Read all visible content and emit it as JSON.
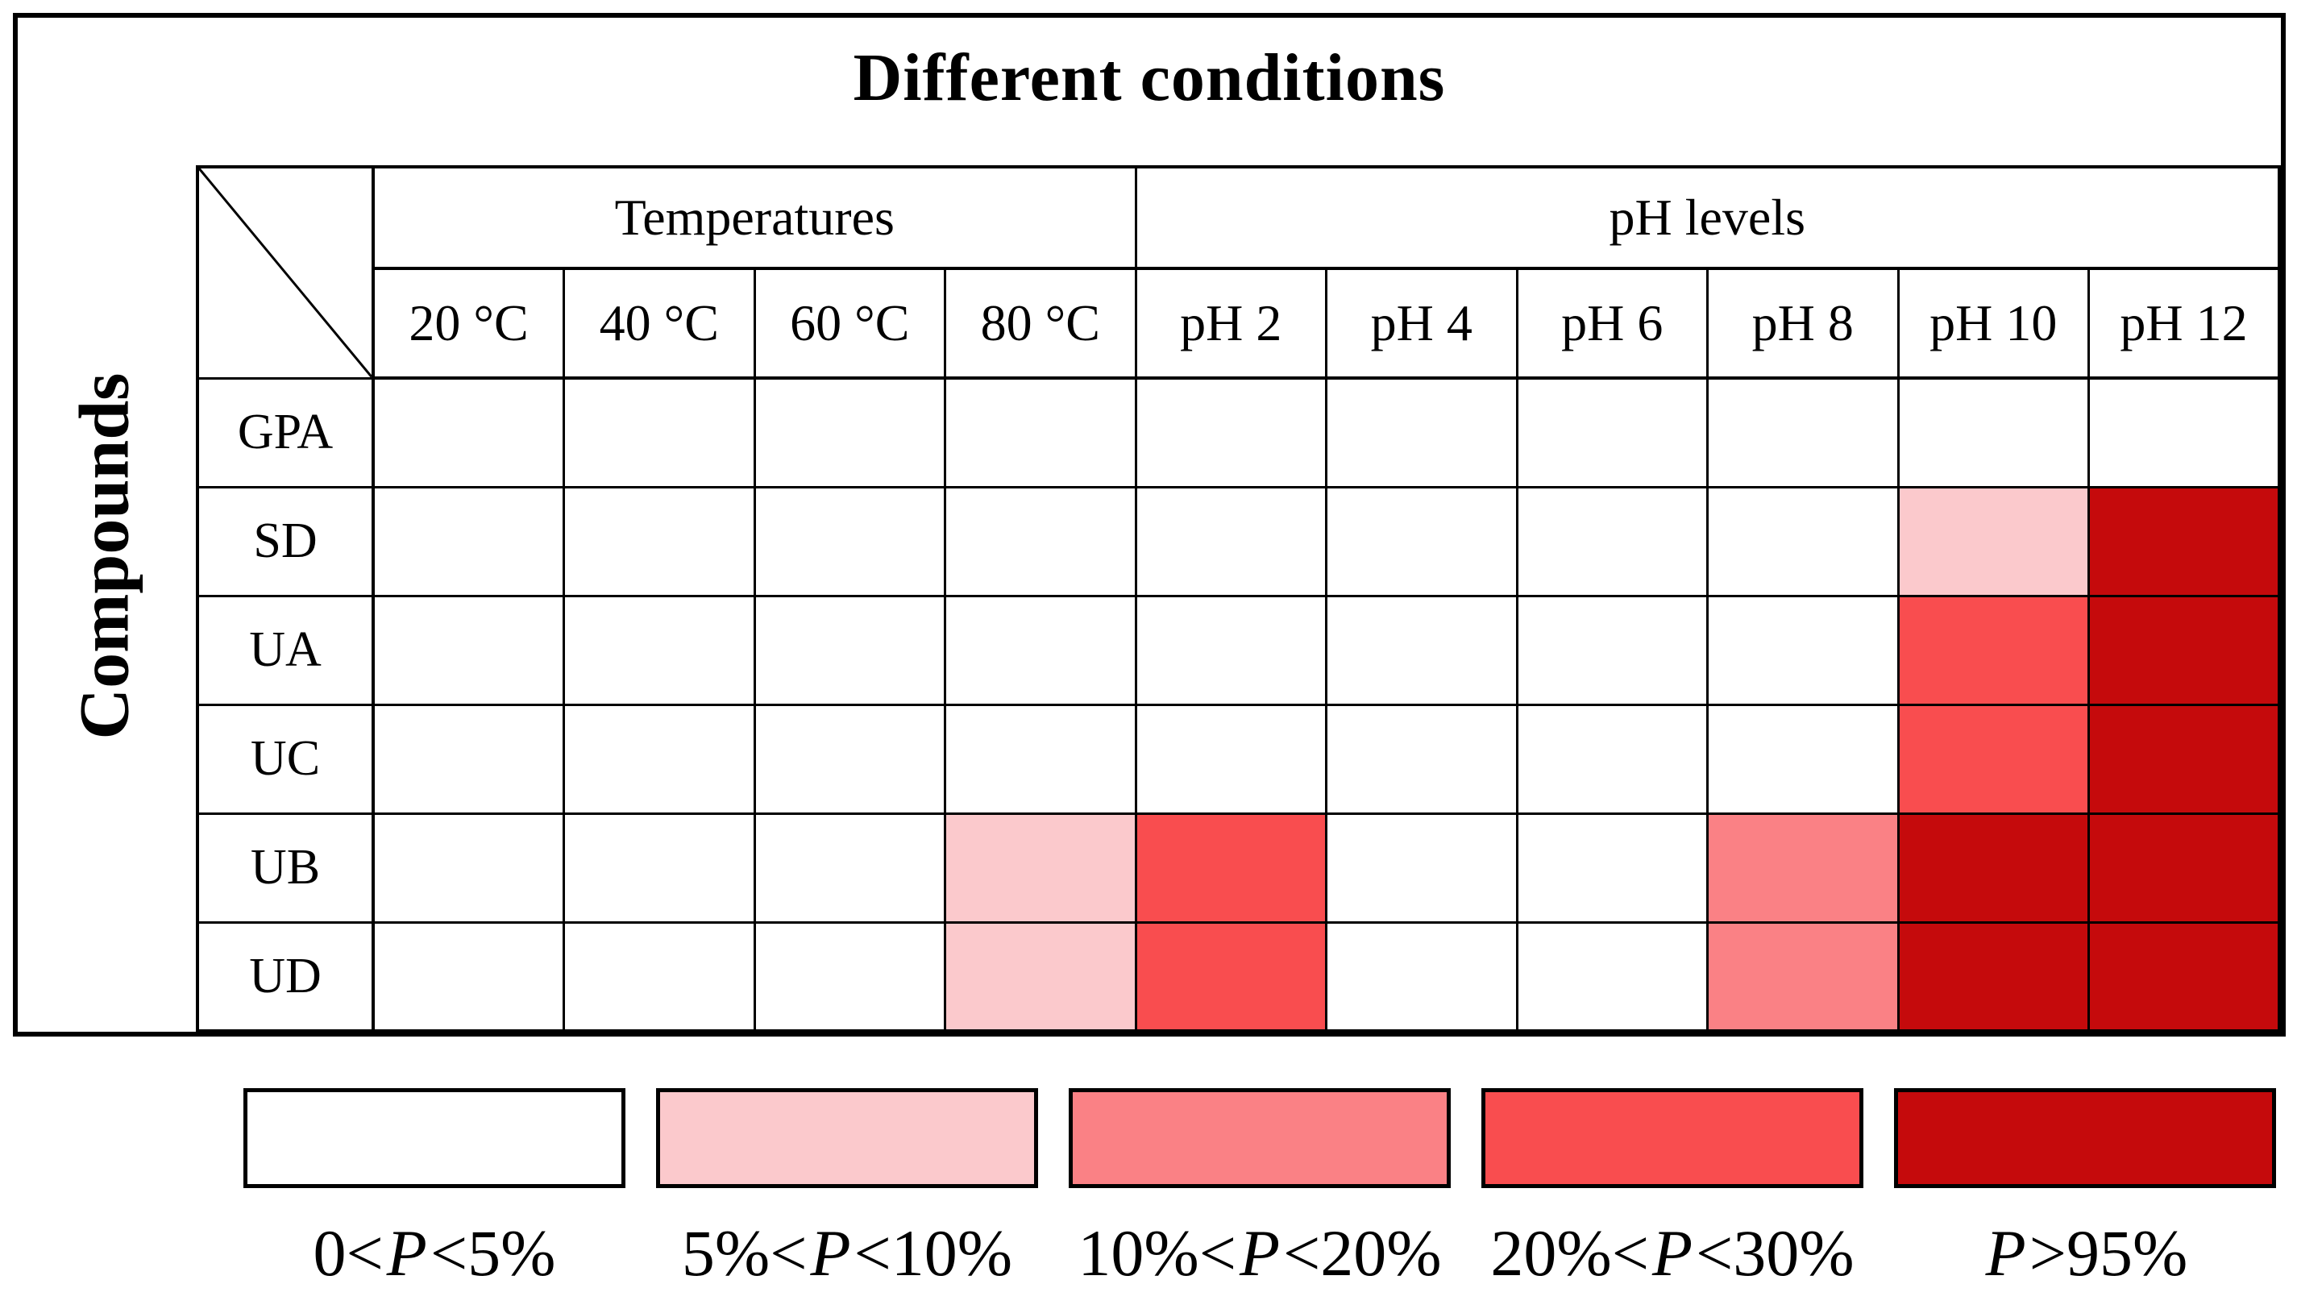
{
  "figure": {
    "title": "Different conditions",
    "y_axis_label": "Compounds"
  },
  "table": {
    "column_groups": [
      {
        "label": "Temperatures",
        "span": 4
      },
      {
        "label": "pH levels",
        "span": 6
      }
    ],
    "columns": [
      "20 °C",
      "40 °C",
      "60 °C",
      "80 °C",
      "pH 2",
      "pH 4",
      "pH 6",
      "pH 8",
      "pH 10",
      "pH 12"
    ],
    "rows": [
      {
        "label": "GPA",
        "levels": [
          0,
          0,
          0,
          0,
          0,
          0,
          0,
          0,
          0,
          0
        ]
      },
      {
        "label": "SD",
        "levels": [
          0,
          0,
          0,
          0,
          0,
          0,
          0,
          0,
          1,
          4
        ]
      },
      {
        "label": "UA",
        "levels": [
          0,
          0,
          0,
          0,
          0,
          0,
          0,
          0,
          3,
          4
        ]
      },
      {
        "label": "UC",
        "levels": [
          0,
          0,
          0,
          0,
          0,
          0,
          0,
          0,
          3,
          4
        ]
      },
      {
        "label": "UB",
        "levels": [
          0,
          0,
          0,
          1,
          3,
          0,
          0,
          2,
          4,
          4
        ]
      },
      {
        "label": "UD",
        "levels": [
          0,
          0,
          0,
          1,
          3,
          0,
          0,
          2,
          4,
          4
        ]
      }
    ]
  },
  "legend": {
    "items": [
      {
        "level": 0,
        "color": "#FFFFFF",
        "pre": "0<",
        "p": "P",
        "post": "<5%",
        "label": "0<P<5%"
      },
      {
        "level": 1,
        "color": "#FBC9CC",
        "pre": "5%<",
        "p": "P",
        "post": "<10%",
        "label": "5%<P<10%"
      },
      {
        "level": 2,
        "color": "#FA8185",
        "pre": "10%<",
        "p": "P",
        "post": "<20%",
        "label": "10%<P<20%"
      },
      {
        "level": 3,
        "color": "#F94D4F",
        "pre": "20%<",
        "p": "P",
        "post": "<30%",
        "label": "20%<P<30%"
      },
      {
        "level": 4,
        "color": "#C50A0C",
        "pre": "",
        "p": "P",
        "post": ">95%",
        "label": "P>95%"
      }
    ]
  },
  "chart_data": {
    "type": "heatmap",
    "title": "Different conditions",
    "ylabel": "Compounds",
    "x_groups": [
      {
        "label": "Temperatures",
        "columns": [
          "20 °C",
          "40 °C",
          "60 °C",
          "80 °C"
        ]
      },
      {
        "label": "pH levels",
        "columns": [
          "pH 2",
          "pH 4",
          "pH 6",
          "pH 8",
          "pH 10",
          "pH 12"
        ]
      }
    ],
    "x": [
      "20 °C",
      "40 °C",
      "60 °C",
      "80 °C",
      "pH 2",
      "pH 4",
      "pH 6",
      "pH 8",
      "pH 10",
      "pH 12"
    ],
    "y": [
      "GPA",
      "SD",
      "UA",
      "UC",
      "UB",
      "UD"
    ],
    "values": [
      [
        "0<P<5%",
        "0<P<5%",
        "0<P<5%",
        "0<P<5%",
        "0<P<5%",
        "0<P<5%",
        "0<P<5%",
        "0<P<5%",
        "0<P<5%",
        "0<P<5%"
      ],
      [
        "0<P<5%",
        "0<P<5%",
        "0<P<5%",
        "0<P<5%",
        "0<P<5%",
        "0<P<5%",
        "0<P<5%",
        "0<P<5%",
        "5%<P<10%",
        "P>95%"
      ],
      [
        "0<P<5%",
        "0<P<5%",
        "0<P<5%",
        "0<P<5%",
        "0<P<5%",
        "0<P<5%",
        "0<P<5%",
        "0<P<5%",
        "20%<P<30%",
        "P>95%"
      ],
      [
        "0<P<5%",
        "0<P<5%",
        "0<P<5%",
        "0<P<5%",
        "0<P<5%",
        "0<P<5%",
        "0<P<5%",
        "0<P<5%",
        "20%<P<30%",
        "P>95%"
      ],
      [
        "0<P<5%",
        "0<P<5%",
        "0<P<5%",
        "5%<P<10%",
        "20%<P<30%",
        "0<P<5%",
        "0<P<5%",
        "10%<P<20%",
        "P>95%",
        "P>95%"
      ],
      [
        "0<P<5%",
        "0<P<5%",
        "0<P<5%",
        "5%<P<10%",
        "20%<P<30%",
        "0<P<5%",
        "0<P<5%",
        "10%<P<20%",
        "P>95%",
        "P>95%"
      ]
    ],
    "legend_entries": [
      "0<P<5%",
      "5%<P<10%",
      "10%<P<20%",
      "20%<P<30%",
      "P>95%"
    ],
    "legend_colors": [
      "#FFFFFF",
      "#FBC9CC",
      "#FA8185",
      "#F94D4F",
      "#C50A0C"
    ],
    "legend_position": "bottom",
    "grid": true
  }
}
